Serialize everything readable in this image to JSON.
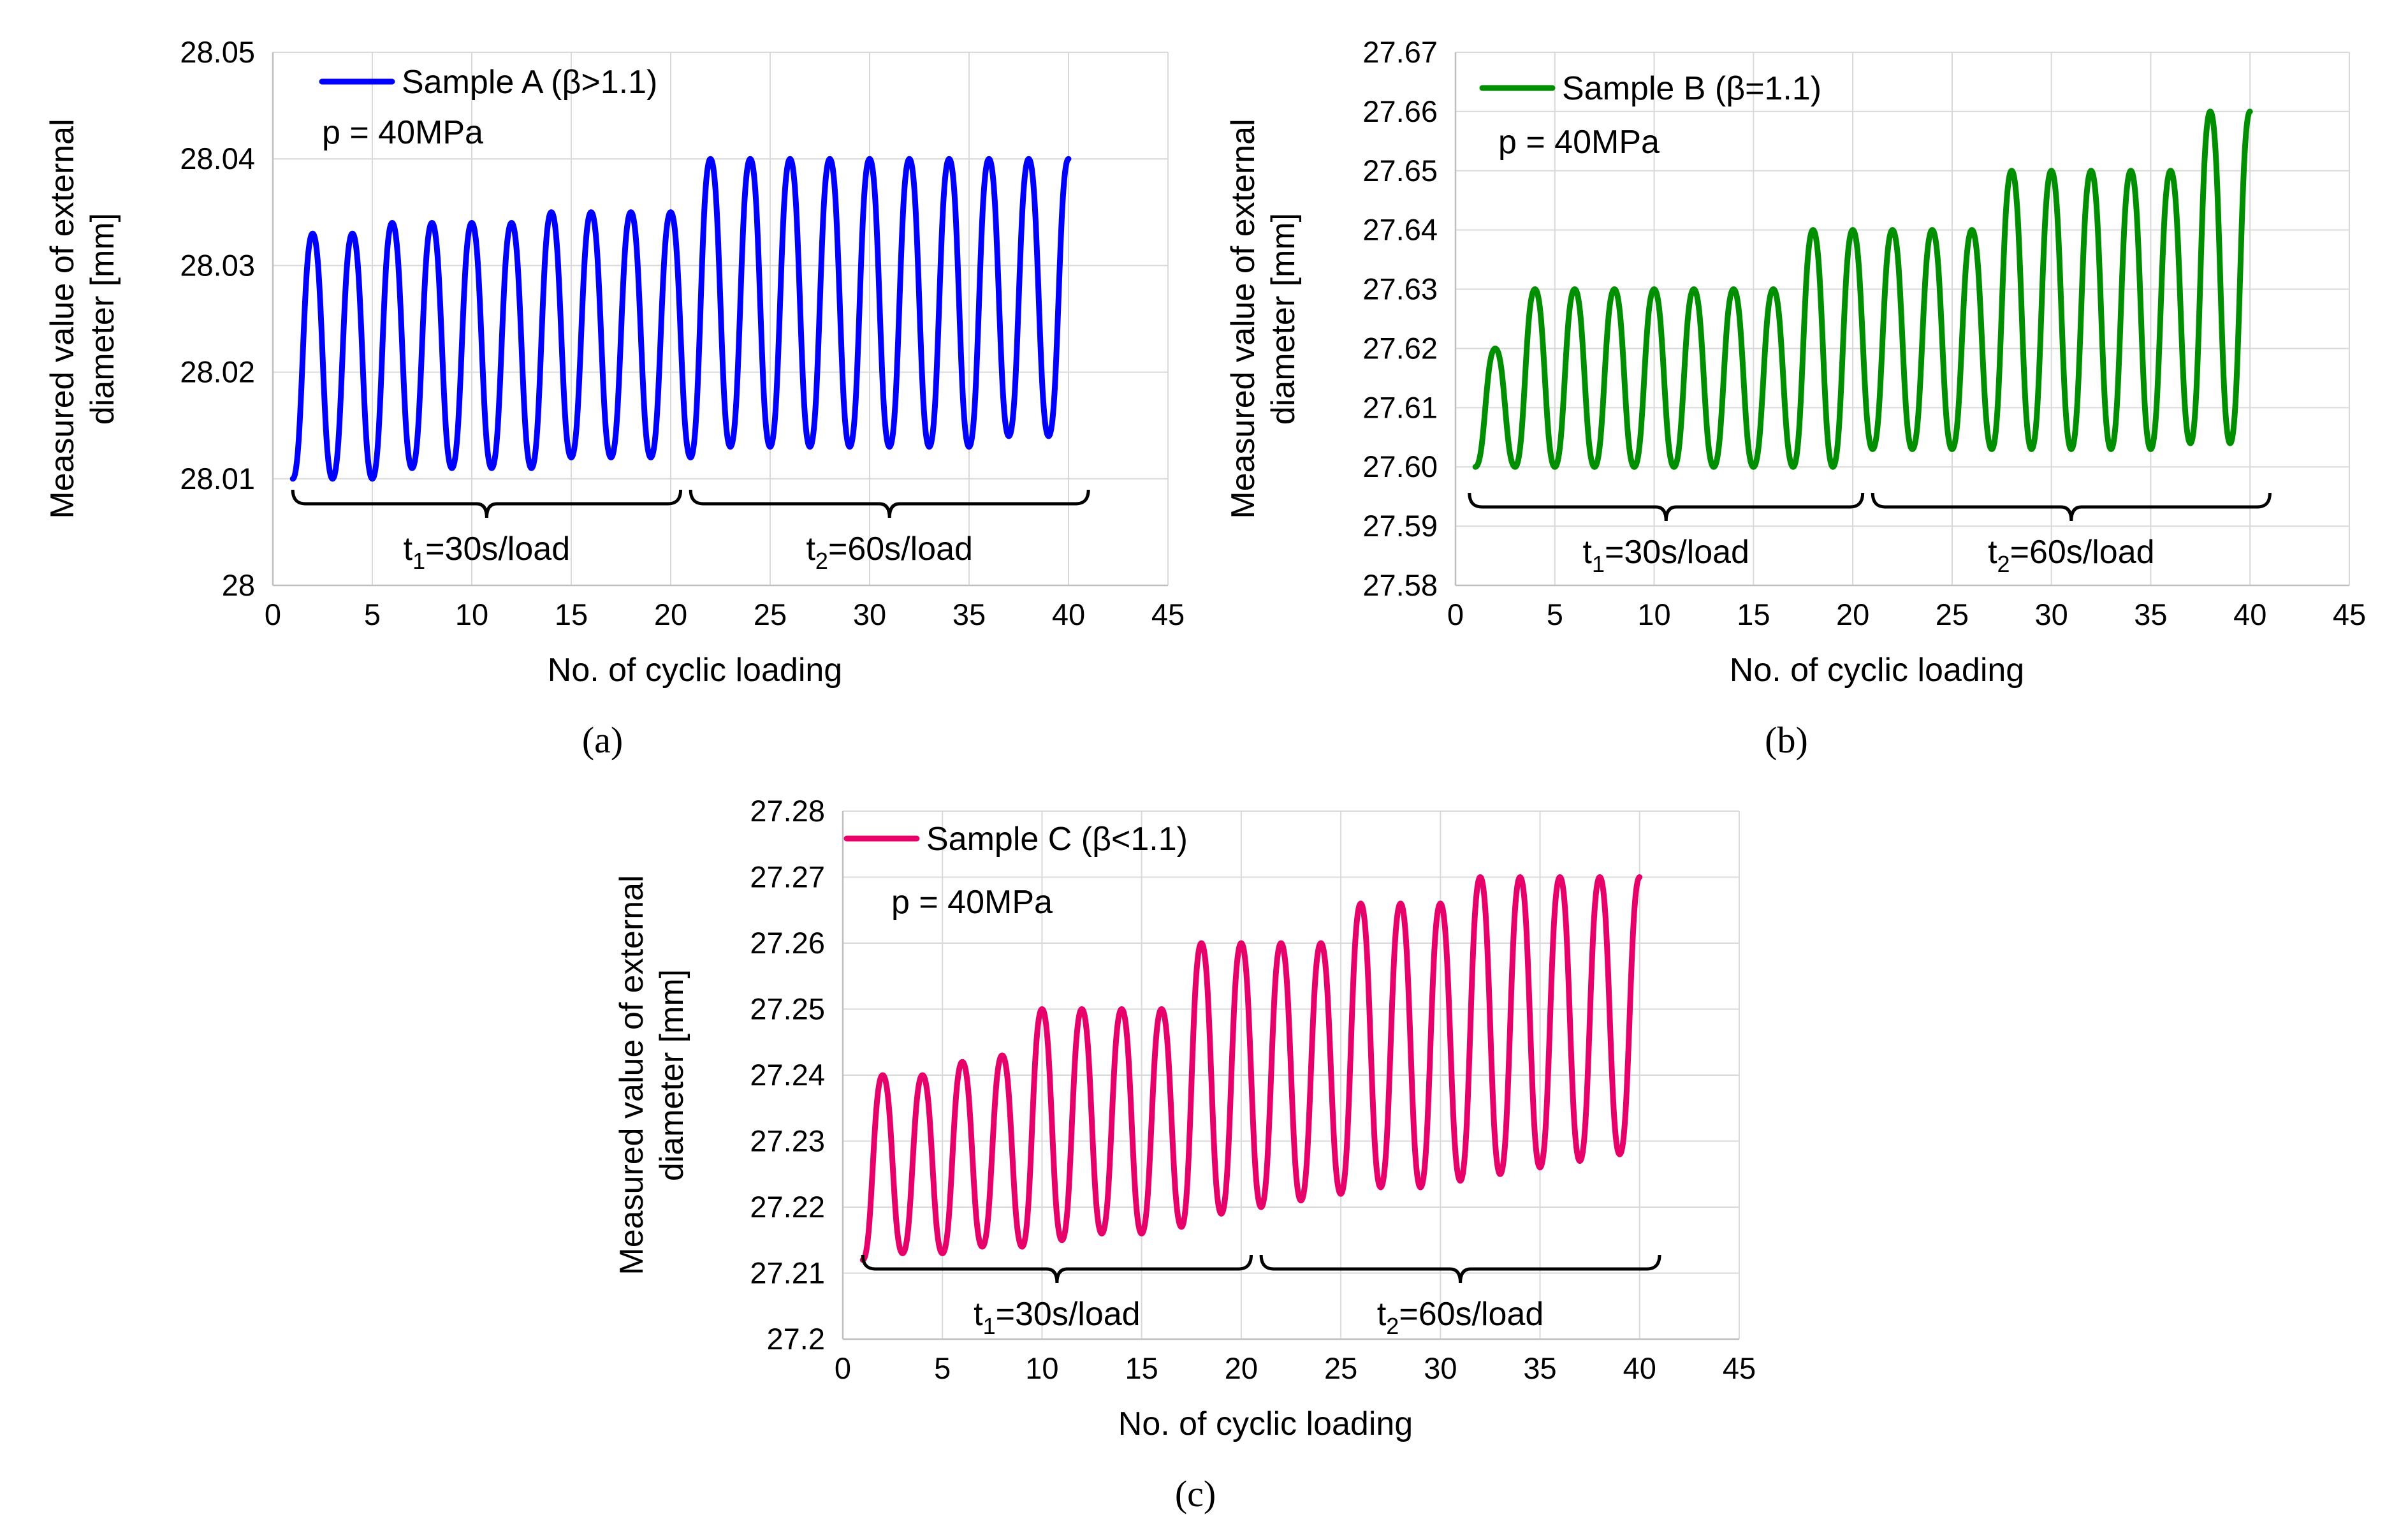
{
  "figure": {
    "panel_labels": [
      "(a)",
      "(b)",
      "(c)"
    ]
  },
  "chart_data": [
    {
      "id": "a",
      "type": "line",
      "title": "",
      "xlabel": "No. of cyclic loading",
      "ylabel_line1": "Measured value of external",
      "ylabel_line2": "diameter [mm]",
      "xlim": [
        0,
        45
      ],
      "ylim": [
        28.0,
        28.05
      ],
      "xticks": [
        "0",
        "5",
        "10",
        "15",
        "20",
        "25",
        "30",
        "35",
        "40",
        "45"
      ],
      "yticks": [
        "28",
        "28.01",
        "28.02",
        "28.03",
        "28.04",
        "28.05"
      ],
      "xtick_values": [
        0,
        5,
        10,
        15,
        20,
        25,
        30,
        35,
        40,
        45
      ],
      "ytick_values": [
        28.0,
        28.01,
        28.02,
        28.03,
        28.04,
        28.05
      ],
      "grid": true,
      "color": "#0000ff",
      "legend": {
        "label": "Sample A (β>1.1)",
        "position": "top-left"
      },
      "annotation": "p = 40MPa",
      "brackets": [
        {
          "x_start": 1,
          "x_end": 20.5,
          "label_main": "t",
          "label_sub": "1",
          "label_rest": "=30s/load"
        },
        {
          "x_start": 21,
          "x_end": 41,
          "label_main": "t",
          "label_sub": "2",
          "label_rest": "=60s/load"
        }
      ],
      "series": [
        {
          "name": "Sample A (β>1.1)",
          "x": [
            1,
            2,
            3,
            4,
            5,
            6,
            7,
            8,
            9,
            10,
            11,
            12,
            13,
            14,
            15,
            16,
            17,
            18,
            19,
            20,
            21,
            22,
            23,
            24,
            25,
            26,
            27,
            28,
            29,
            30,
            31,
            32,
            33,
            34,
            35,
            36,
            37,
            38,
            39,
            40
          ],
          "y": [
            28.01,
            28.033,
            28.01,
            28.033,
            28.01,
            28.034,
            28.011,
            28.034,
            28.011,
            28.034,
            28.011,
            28.034,
            28.011,
            28.035,
            28.012,
            28.035,
            28.012,
            28.035,
            28.012,
            28.035,
            28.012,
            28.04,
            28.013,
            28.04,
            28.013,
            28.04,
            28.013,
            28.04,
            28.013,
            28.04,
            28.013,
            28.04,
            28.013,
            28.04,
            28.013,
            28.04,
            28.014,
            28.04,
            28.014,
            28.04
          ]
        }
      ]
    },
    {
      "id": "b",
      "type": "line",
      "title": "",
      "xlabel": "No. of cyclic loading",
      "ylabel_line1": "Measured value of external",
      "ylabel_line2": "diameter [mm]",
      "xlim": [
        0,
        45
      ],
      "ylim": [
        27.58,
        27.67
      ],
      "xticks": [
        "0",
        "5",
        "10",
        "15",
        "20",
        "25",
        "30",
        "35",
        "40",
        "45"
      ],
      "yticks": [
        "27.58",
        "27.59",
        "27.60",
        "27.61",
        "27.62",
        "27.63",
        "27.64",
        "27.65",
        "27.66",
        "27.67"
      ],
      "xtick_values": [
        0,
        5,
        10,
        15,
        20,
        25,
        30,
        35,
        40,
        45
      ],
      "ytick_values": [
        27.58,
        27.59,
        27.6,
        27.61,
        27.62,
        27.63,
        27.64,
        27.65,
        27.66,
        27.67
      ],
      "grid": true,
      "color": "#008f00",
      "legend": {
        "label": "Sample B (β=1.1)",
        "position": "top-left"
      },
      "annotation": "p = 40MPa",
      "brackets": [
        {
          "x_start": 0.7,
          "x_end": 20.5,
          "label_main": "t",
          "label_sub": "1",
          "label_rest": "=30s/load"
        },
        {
          "x_start": 21,
          "x_end": 41,
          "label_main": "t",
          "label_sub": "2",
          "label_rest": "=60s/load"
        }
      ],
      "series": [
        {
          "name": "Sample B (β=1.1)",
          "x": [
            1,
            2,
            3,
            4,
            5,
            6,
            7,
            8,
            9,
            10,
            11,
            12,
            13,
            14,
            15,
            16,
            17,
            18,
            19,
            20,
            21,
            22,
            23,
            24,
            25,
            26,
            27,
            28,
            29,
            30,
            31,
            32,
            33,
            34,
            35,
            36,
            37,
            38,
            39,
            40
          ],
          "y": [
            27.6,
            27.62,
            27.6,
            27.63,
            27.6,
            27.63,
            27.6,
            27.63,
            27.6,
            27.63,
            27.6,
            27.63,
            27.6,
            27.63,
            27.6,
            27.63,
            27.6,
            27.64,
            27.6,
            27.64,
            27.603,
            27.64,
            27.603,
            27.64,
            27.603,
            27.64,
            27.603,
            27.65,
            27.603,
            27.65,
            27.603,
            27.65,
            27.603,
            27.65,
            27.603,
            27.65,
            27.604,
            27.66,
            27.604,
            27.66
          ]
        }
      ]
    },
    {
      "id": "c",
      "type": "line",
      "title": "",
      "xlabel": "No. of cyclic loading",
      "ylabel_line1": "Measured value of external",
      "ylabel_line2": "diameter [mm]",
      "xlim": [
        0,
        45
      ],
      "ylim": [
        27.2,
        27.28
      ],
      "xticks": [
        "0",
        "5",
        "10",
        "15",
        "20",
        "25",
        "30",
        "35",
        "40",
        "45"
      ],
      "yticks": [
        "27.2",
        "27.21",
        "27.22",
        "27.23",
        "27.24",
        "27.25",
        "27.26",
        "27.27",
        "27.28"
      ],
      "xtick_values": [
        0,
        5,
        10,
        15,
        20,
        25,
        30,
        35,
        40,
        45
      ],
      "ytick_values": [
        27.2,
        27.21,
        27.22,
        27.23,
        27.24,
        27.25,
        27.26,
        27.27,
        27.28
      ],
      "grid": true,
      "color": "#e8006a",
      "legend": {
        "label": "Sample C (β<1.1)",
        "position": "top-left"
      },
      "annotation": "p = 40MPa",
      "brackets": [
        {
          "x_start": 1,
          "x_end": 20.5,
          "label_main": "t",
          "label_sub": "1",
          "label_rest": "=30s/load"
        },
        {
          "x_start": 21,
          "x_end": 41,
          "label_main": "t",
          "label_sub": "2",
          "label_rest": "=60s/load"
        }
      ],
      "series": [
        {
          "name": "Sample C (β<1.1)",
          "x": [
            1,
            2,
            3,
            4,
            5,
            6,
            7,
            8,
            9,
            10,
            11,
            12,
            13,
            14,
            15,
            16,
            17,
            18,
            19,
            20,
            21,
            22,
            23,
            24,
            25,
            26,
            27,
            28,
            29,
            30,
            31,
            32,
            33,
            34,
            35,
            36,
            37,
            38,
            39,
            40
          ],
          "y": [
            27.212,
            27.24,
            27.213,
            27.24,
            27.213,
            27.242,
            27.214,
            27.243,
            27.214,
            27.25,
            27.215,
            27.25,
            27.216,
            27.25,
            27.216,
            27.25,
            27.217,
            27.26,
            27.219,
            27.26,
            27.22,
            27.26,
            27.221,
            27.26,
            27.222,
            27.266,
            27.223,
            27.266,
            27.223,
            27.266,
            27.224,
            27.27,
            27.225,
            27.27,
            27.226,
            27.27,
            27.227,
            27.27,
            27.228,
            27.27
          ]
        }
      ]
    }
  ]
}
